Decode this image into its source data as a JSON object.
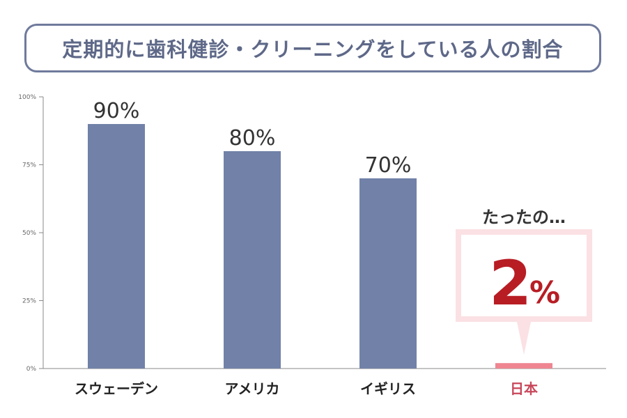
{
  "title": "定期的に歯科健診・クリーニングをしている人の割合",
  "chart_data": {
    "type": "bar",
    "categories": [
      "スウェーデン",
      "アメリカ",
      "イギリス",
      "日本"
    ],
    "values": [
      90,
      80,
      70,
      2
    ],
    "value_labels": [
      "90%",
      "80%",
      "70%",
      ""
    ],
    "y_ticks": [
      0,
      25,
      50,
      75,
      100
    ],
    "y_tick_labels": [
      "0%",
      "25%",
      "50%",
      "75%",
      "100%"
    ],
    "ylim": [
      0,
      100
    ],
    "grid": false,
    "colors": {
      "bar": "#7181a8",
      "highlight_bar": "#ef8591",
      "highlight_label": "#c8475a",
      "callout_border": "#fbe1e4",
      "callout_text": "#b81d24"
    },
    "highlight_index": 3
  },
  "callout": {
    "lead": "たったの…",
    "value": "2",
    "unit": "%"
  }
}
